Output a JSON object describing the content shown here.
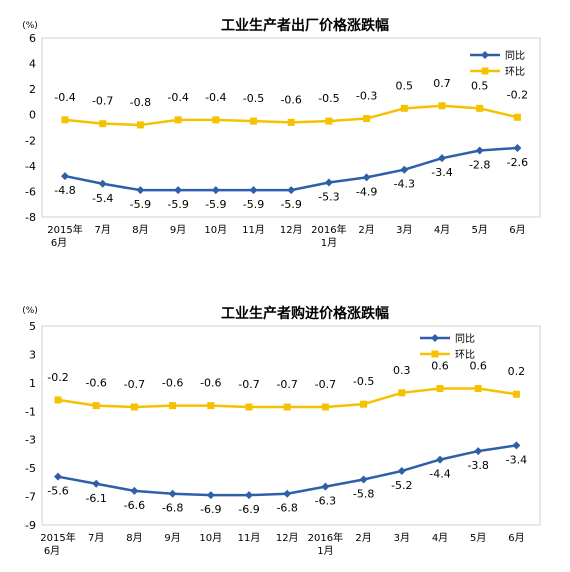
{
  "chart_data": [
    {
      "type": "line",
      "title": "工业生产者出厂价格涨跌幅",
      "unit": "(%)",
      "categories": [
        [
          "2015年",
          "6月"
        ],
        [
          "7月"
        ],
        [
          "8月"
        ],
        [
          "9月"
        ],
        [
          "10月"
        ],
        [
          "11月"
        ],
        [
          "12月"
        ],
        [
          "2016年",
          "1月"
        ],
        [
          "2月"
        ],
        [
          "3月"
        ],
        [
          "4月"
        ],
        [
          "5月"
        ],
        [
          "6月"
        ]
      ],
      "ylim": [
        -8,
        6
      ],
      "yticks": [
        6,
        4,
        2,
        0,
        -2,
        -4,
        -6,
        -8
      ],
      "legend_position": "top-right",
      "series": [
        {
          "name": "同比",
          "color": "#2e5fa8",
          "marker": "diamond",
          "values": [
            -4.8,
            -5.4,
            -5.9,
            -5.9,
            -5.9,
            -5.9,
            -5.9,
            -5.3,
            -4.9,
            -4.3,
            -3.4,
            -2.8,
            -2.6
          ],
          "label_side": "below"
        },
        {
          "name": "环比",
          "color": "#f5c100",
          "marker": "square",
          "values": [
            -0.4,
            -0.7,
            -0.8,
            -0.4,
            -0.4,
            -0.5,
            -0.6,
            -0.5,
            -0.3,
            0.5,
            0.7,
            0.5,
            -0.2
          ],
          "label_side": "above"
        }
      ]
    },
    {
      "type": "line",
      "title": "工业生产者购进价格涨跌幅",
      "unit": "(%)",
      "categories": [
        [
          "2015年",
          "6月"
        ],
        [
          "7月"
        ],
        [
          "8月"
        ],
        [
          "9月"
        ],
        [
          "10月"
        ],
        [
          "11月"
        ],
        [
          "12月"
        ],
        [
          "2016年",
          "1月"
        ],
        [
          "2月"
        ],
        [
          "3月"
        ],
        [
          "4月"
        ],
        [
          "5月"
        ],
        [
          "6月"
        ]
      ],
      "ylim": [
        -9,
        5
      ],
      "yticks": [
        5,
        3,
        1,
        -1,
        -3,
        -5,
        -7,
        -9
      ],
      "legend_position": "top-right",
      "series": [
        {
          "name": "同比",
          "color": "#2e5fa8",
          "marker": "diamond",
          "values": [
            -5.6,
            -6.1,
            -6.6,
            -6.8,
            -6.9,
            -6.9,
            -6.8,
            -6.3,
            -5.8,
            -5.2,
            -4.4,
            -3.8,
            -3.4
          ],
          "label_side": "below"
        },
        {
          "name": "环比",
          "color": "#f5c100",
          "marker": "square",
          "values": [
            -0.2,
            -0.6,
            -0.7,
            -0.6,
            -0.6,
            -0.7,
            -0.7,
            -0.7,
            -0.5,
            0.3,
            0.6,
            0.6,
            0.2
          ],
          "label_side": "above"
        }
      ]
    }
  ]
}
